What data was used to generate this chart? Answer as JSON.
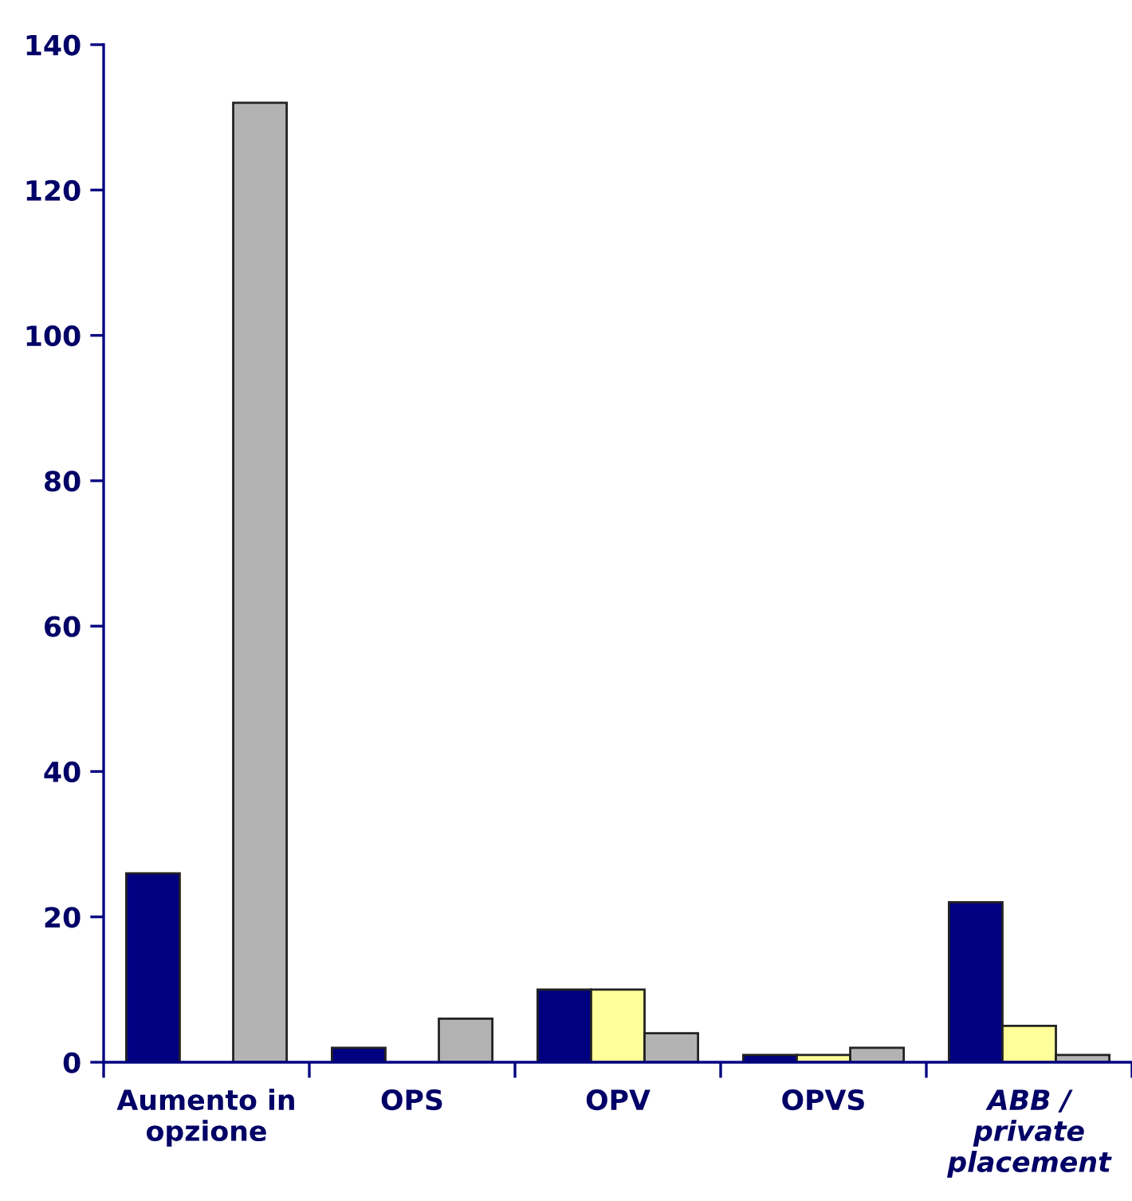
{
  "chart_data": {
    "type": "bar",
    "categories": [
      "Aumento in\nopzione",
      "OPS",
      "OPV",
      "OPVS",
      "ABB /\nprivate\nplacement"
    ],
    "series": [
      {
        "color": "#000080",
        "values": [
          26,
          2,
          10,
          1,
          22
        ]
      },
      {
        "color": "#ffff99",
        "values": [
          null,
          null,
          10,
          1,
          5
        ]
      },
      {
        "color": "#b3b3b3",
        "values": [
          132,
          6,
          4,
          2,
          1
        ]
      }
    ],
    "ylim": [
      0,
      140
    ],
    "yticks": [
      0,
      20,
      40,
      60,
      80,
      100,
      120,
      140
    ]
  }
}
